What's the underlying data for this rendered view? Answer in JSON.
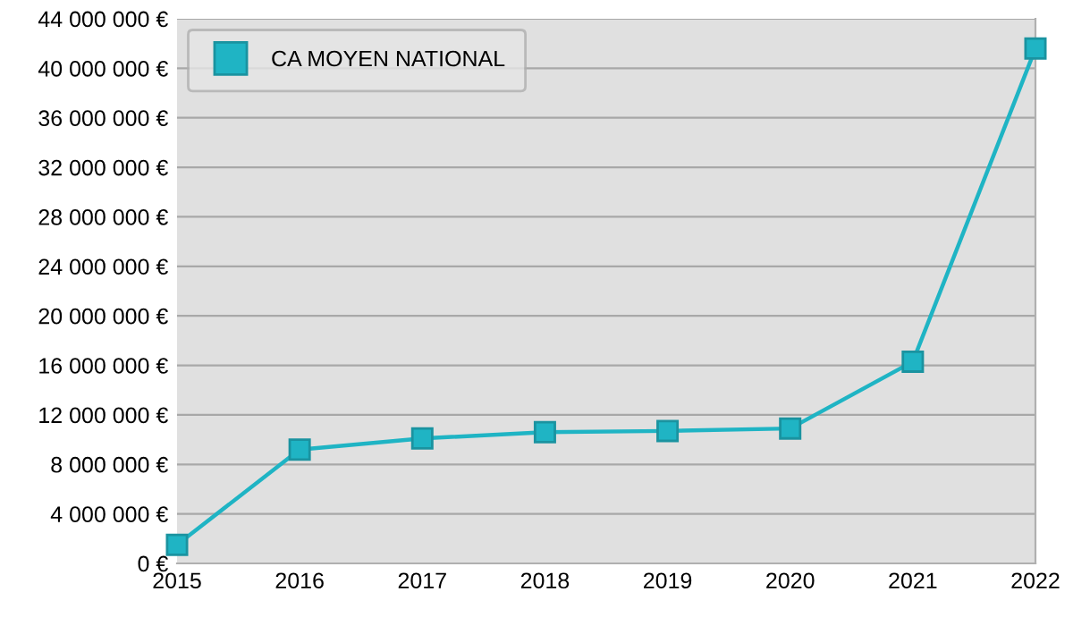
{
  "chart_data": {
    "type": "line",
    "categories": [
      "2015",
      "2016",
      "2017",
      "2018",
      "2019",
      "2020",
      "2021",
      "2022"
    ],
    "series": [
      {
        "name": "CA MOYEN NATIONAL",
        "color": "#1fb4c4",
        "values": [
          1500000,
          9200000,
          10100000,
          10600000,
          10700000,
          10900000,
          16300000,
          41600000
        ]
      }
    ],
    "ylim": [
      0,
      44000000
    ],
    "yticks": [
      {
        "value": 0,
        "label": "0 €"
      },
      {
        "value": 4000000,
        "label": "4 000 000 €"
      },
      {
        "value": 8000000,
        "label": "8 000 000 €"
      },
      {
        "value": 12000000,
        "label": "12 000 000 €"
      },
      {
        "value": 16000000,
        "label": "16 000 000 €"
      },
      {
        "value": 20000000,
        "label": "20 000 000 €"
      },
      {
        "value": 24000000,
        "label": "24 000 000 €"
      },
      {
        "value": 28000000,
        "label": "28 000 000 €"
      },
      {
        "value": 32000000,
        "label": "32 000 000 €"
      },
      {
        "value": 36000000,
        "label": "36 000 000 €"
      },
      {
        "value": 40000000,
        "label": "40 000 000 €"
      },
      {
        "value": 44000000,
        "label": "44 000 000 €"
      }
    ],
    "grid": "y",
    "legend": "top left",
    "marker": "square",
    "line_style": "solid"
  }
}
